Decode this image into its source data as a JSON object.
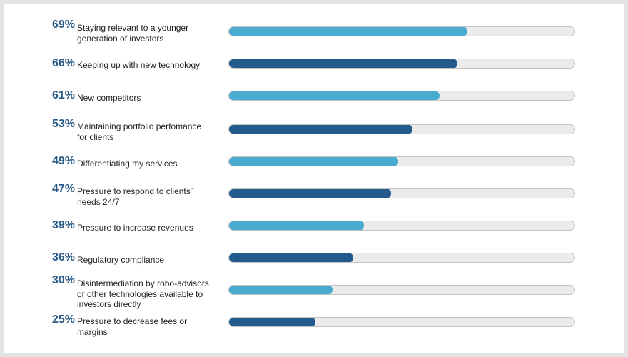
{
  "chart_data": {
    "type": "bar",
    "orientation": "horizontal",
    "scale_max": 100,
    "colors": {
      "light": "#4aabd0",
      "dark": "#225b8b",
      "track": "#ebebeb",
      "pct_text": "#2a5b86"
    },
    "items": [
      {
        "pct": "69%",
        "value": 69,
        "label": "Staying relevant to a younger\n generation of investors",
        "shade": "light"
      },
      {
        "pct": "66%",
        "value": 66,
        "label": "Keeping up with new technology",
        "shade": "dark"
      },
      {
        "pct": "61%",
        "value": 61,
        "label": "New competitors",
        "shade": "light"
      },
      {
        "pct": "53%",
        "value": 53,
        "label": "Maintaining portfolio perfomance\n for clients",
        "shade": "dark"
      },
      {
        "pct": "49%",
        "value": 49,
        "label": "Differentiating my services",
        "shade": "light"
      },
      {
        "pct": "47%",
        "value": 47,
        "label": "Pressure to respond to clients`\n needs 24/7",
        "shade": "dark"
      },
      {
        "pct": "39%",
        "value": 39,
        "label": "Pressure to increase revenues",
        "shade": "light"
      },
      {
        "pct": "36%",
        "value": 36,
        "label": "Regulatory compliance",
        "shade": "dark"
      },
      {
        "pct": "30%",
        "value": 30,
        "label": "Disintermediation by robo-advisors\nor other technologies available to\ninvestors directly",
        "shade": "light"
      },
      {
        "pct": "25%",
        "value": 25,
        "label": "Pressure to decrease fees or\nmargins",
        "shade": "dark"
      }
    ]
  }
}
